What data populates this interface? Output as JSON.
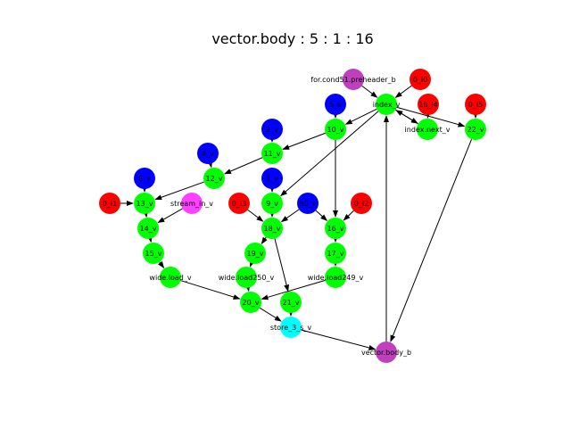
{
  "title": "vector.body : 5 : 1 : 16",
  "colors": {
    "red": "#ff0000",
    "blue": "#0000ff",
    "green": "#00ff00",
    "purple": "#bf3fbf",
    "magenta": "#ff40ff",
    "cyan": "#00ffff"
  },
  "nodes": [
    {
      "id": "for.cond51.preheader_b",
      "label": "for.cond51.preheader_b",
      "color": "purple"
    },
    {
      "id": "0_i0",
      "label": "0_i0",
      "color": "red"
    },
    {
      "id": "index_v",
      "label": "index_v",
      "color": "green"
    },
    {
      "id": "5_v",
      "label": "5_v",
      "color": "blue"
    },
    {
      "id": "16_i4",
      "label": "16_i4",
      "color": "red"
    },
    {
      "id": "0_i5",
      "label": "0_i5",
      "color": "red"
    },
    {
      "id": "index.next_v",
      "label": "index.next_v",
      "color": "green"
    },
    {
      "id": "22_v",
      "label": "22_v",
      "color": "green"
    },
    {
      "id": "2_v",
      "label": "2_v",
      "color": "blue"
    },
    {
      "id": "10_v",
      "label": "10_v",
      "color": "green"
    },
    {
      "id": "11_v",
      "label": "11_v",
      "color": "green"
    },
    {
      "id": "4_v",
      "label": "4_v",
      "color": "blue"
    },
    {
      "id": "12_v",
      "label": "12_v",
      "color": "green"
    },
    {
      "id": "6_v",
      "label": "6_v",
      "color": "blue"
    },
    {
      "id": "1_v",
      "label": "1_v",
      "color": "blue"
    },
    {
      "id": "0_i1",
      "label": "0_i1",
      "color": "red"
    },
    {
      "id": "13_v",
      "label": "13_v",
      "color": "green"
    },
    {
      "id": "stream_in_v",
      "label": "stream_in_v",
      "color": "magenta"
    },
    {
      "id": "0_i3",
      "label": "0_i3",
      "color": "red"
    },
    {
      "id": "9_v",
      "label": "9_v",
      "color": "green"
    },
    {
      "id": "h0_v",
      "label": "h0_v",
      "color": "blue"
    },
    {
      "id": "0_i2",
      "label": "0_i2",
      "color": "red"
    },
    {
      "id": "14_v",
      "label": "14_v",
      "color": "green"
    },
    {
      "id": "18_v",
      "label": "18_v",
      "color": "green"
    },
    {
      "id": "16_v",
      "label": "16_v",
      "color": "green"
    },
    {
      "id": "15_v",
      "label": "15_v",
      "color": "green"
    },
    {
      "id": "19_v",
      "label": "19_v",
      "color": "green"
    },
    {
      "id": "17_v",
      "label": "17_v",
      "color": "green"
    },
    {
      "id": "wide.load_v",
      "label": "wide.load_v",
      "color": "green"
    },
    {
      "id": "wide.load250_v",
      "label": "wide.load250_v",
      "color": "green"
    },
    {
      "id": "wide.load249_v",
      "label": "wide.load249_v",
      "color": "green"
    },
    {
      "id": "20_v",
      "label": "20_v",
      "color": "green"
    },
    {
      "id": "21_v",
      "label": "21_v",
      "color": "green"
    },
    {
      "id": "store_3_s_v",
      "label": "store_3_s_v",
      "color": "cyan"
    },
    {
      "id": "vector.body_b",
      "label": "vector.body_b",
      "color": "purple"
    }
  ],
  "edges": [
    [
      "for.cond51.preheader_b",
      "index_v"
    ],
    [
      "0_i0",
      "index_v"
    ],
    [
      "index_v",
      "index.next_v"
    ],
    [
      "16_i4",
      "index.next_v"
    ],
    [
      "index.next_v",
      "index_v"
    ],
    [
      "index_v",
      "22_v"
    ],
    [
      "0_i5",
      "22_v"
    ],
    [
      "22_v",
      "vector.body_b"
    ],
    [
      "index_v",
      "10_v"
    ],
    [
      "5_v",
      "10_v"
    ],
    [
      "10_v",
      "11_v"
    ],
    [
      "2_v",
      "11_v"
    ],
    [
      "11_v",
      "12_v"
    ],
    [
      "4_v",
      "12_v"
    ],
    [
      "12_v",
      "13_v"
    ],
    [
      "6_v",
      "13_v"
    ],
    [
      "13_v",
      "14_v"
    ],
    [
      "0_i1",
      "13_v"
    ],
    [
      "stream_in_v",
      "14_v"
    ],
    [
      "14_v",
      "15_v"
    ],
    [
      "15_v",
      "wide.load_v"
    ],
    [
      "wide.load_v",
      "20_v"
    ],
    [
      "index_v",
      "9_v"
    ],
    [
      "1_v",
      "9_v"
    ],
    [
      "9_v",
      "18_v"
    ],
    [
      "0_i3",
      "18_v"
    ],
    [
      "h0_v",
      "18_v"
    ],
    [
      "18_v",
      "19_v"
    ],
    [
      "19_v",
      "wide.load250_v"
    ],
    [
      "wide.load250_v",
      "20_v"
    ],
    [
      "18_v",
      "21_v"
    ],
    [
      "10_v",
      "16_v"
    ],
    [
      "h0_v",
      "16_v"
    ],
    [
      "0_i2",
      "16_v"
    ],
    [
      "16_v",
      "17_v"
    ],
    [
      "17_v",
      "wide.load249_v"
    ],
    [
      "wide.load249_v",
      "20_v"
    ],
    [
      "20_v",
      "store_3_s_v"
    ],
    [
      "21_v",
      "store_3_s_v"
    ],
    [
      "store_3_s_v",
      "vector.body_b"
    ],
    [
      "vector.body_b",
      "index_v"
    ]
  ]
}
